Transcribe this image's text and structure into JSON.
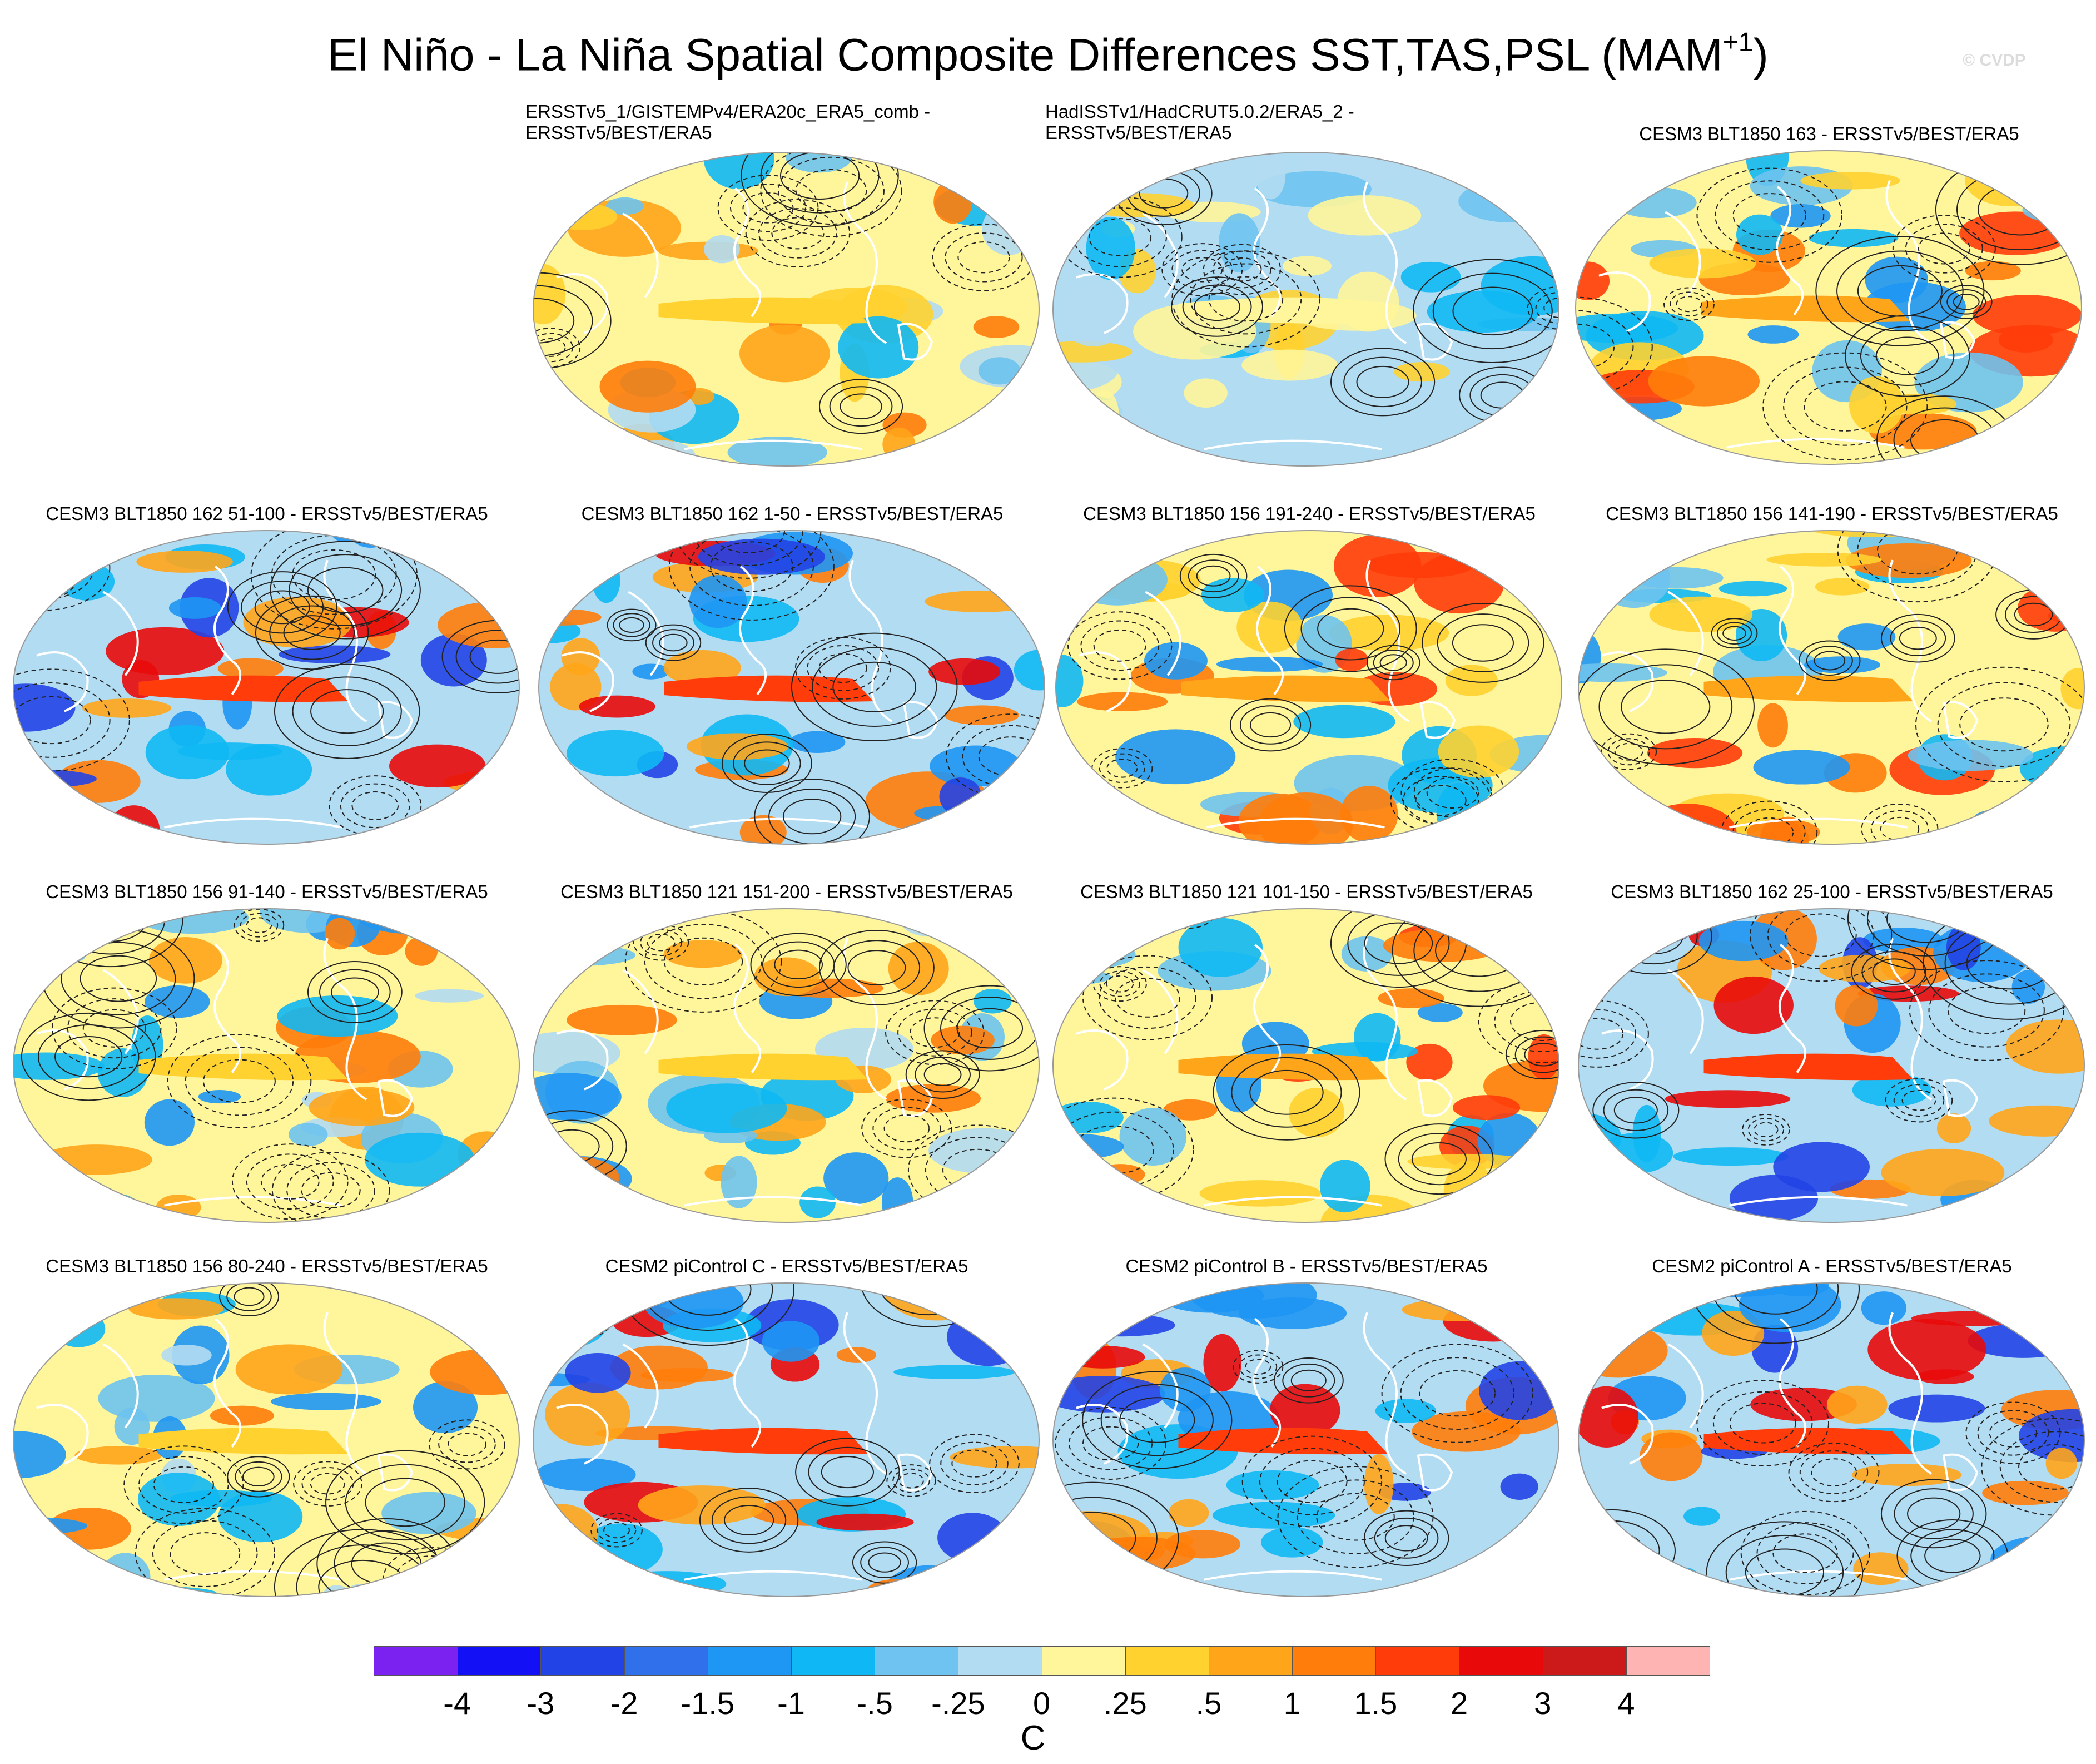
{
  "figure": {
    "title_main": "El Niño - La Niña Spatial Composite Differences SST,TAS,PSL (MAM",
    "title_sup": "+1",
    "title_end": ")",
    "watermark": "© CVDP"
  },
  "panels": [
    {
      "title": [
        "ERSSTv5_1/GISTEMPv4/ERA20c_ERA5_comb -",
        "ERSSTv5/BEST/ERA5"
      ],
      "align": "left",
      "pattern": "obs1"
    },
    {
      "title": [
        "HadISSTv1/HadCRUT5.0.2/ERA5_2 -",
        "ERSSTv5/BEST/ERA5"
      ],
      "align": "left",
      "pattern": "obs2"
    },
    {
      "title": [
        "CESM3 BLT1850 163 - ERSSTv5/BEST/ERA5"
      ],
      "align": "center",
      "pattern": "moderate"
    },
    {
      "title": [
        "CESM3 BLT1850 162 51-100 - ERSSTv5/BEST/ERA5"
      ],
      "align": "center",
      "pattern": "strong"
    },
    {
      "title": [
        "CESM3 BLT1850 162 1-50 - ERSSTv5/BEST/ERA5"
      ],
      "align": "center",
      "pattern": "strong"
    },
    {
      "title": [
        "CESM3 BLT1850 156 191-240 - ERSSTv5/BEST/ERA5"
      ],
      "align": "center",
      "pattern": "moderate"
    },
    {
      "title": [
        "CESM3 BLT1850 156 141-190 - ERSSTv5/BEST/ERA5"
      ],
      "align": "center",
      "pattern": "moderate"
    },
    {
      "title": [
        "CESM3 BLT1850 156 91-140 - ERSSTv5/BEST/ERA5"
      ],
      "align": "center",
      "pattern": "weak"
    },
    {
      "title": [
        "CESM3 BLT1850 121 151-200 - ERSSTv5/BEST/ERA5"
      ],
      "align": "center",
      "pattern": "weak"
    },
    {
      "title": [
        "CESM3 BLT1850 121 101-150 - ERSSTv5/BEST/ERA5"
      ],
      "align": "center",
      "pattern": "moderate"
    },
    {
      "title": [
        "CESM3 BLT1850 162 25-100 - ERSSTv5/BEST/ERA5"
      ],
      "align": "center",
      "pattern": "strong"
    },
    {
      "title": [
        "CESM3 BLT1850 156 80-240 - ERSSTv5/BEST/ERA5"
      ],
      "align": "center",
      "pattern": "weak"
    },
    {
      "title": [
        "CESM2 piControl C - ERSSTv5/BEST/ERA5"
      ],
      "align": "center",
      "pattern": "strong"
    },
    {
      "title": [
        "CESM2 piControl B - ERSSTv5/BEST/ERA5"
      ],
      "align": "center",
      "pattern": "strong"
    },
    {
      "title": [
        "CESM2 piControl A - ERSSTv5/BEST/ERA5"
      ],
      "align": "center",
      "pattern": "strong"
    }
  ],
  "colorbar": {
    "unit": "C",
    "labels": [
      "-4",
      "-3",
      "-2",
      "-1.5",
      "-1",
      "-.5",
      "-.25",
      "0",
      ".25",
      ".5",
      "1",
      "1.5",
      "2",
      "3",
      "4"
    ],
    "colors": [
      "#7b22f0",
      "#1410f5",
      "#2244e6",
      "#3070ea",
      "#1e96f4",
      "#0fb8f4",
      "#6ec3f0",
      "#b2dcf2",
      "#fff59a",
      "#ffd230",
      "#ffa51a",
      "#ff7d0a",
      "#ff3c0a",
      "#e80a0a",
      "#cc1a1a",
      "#ffb4b4"
    ]
  }
}
